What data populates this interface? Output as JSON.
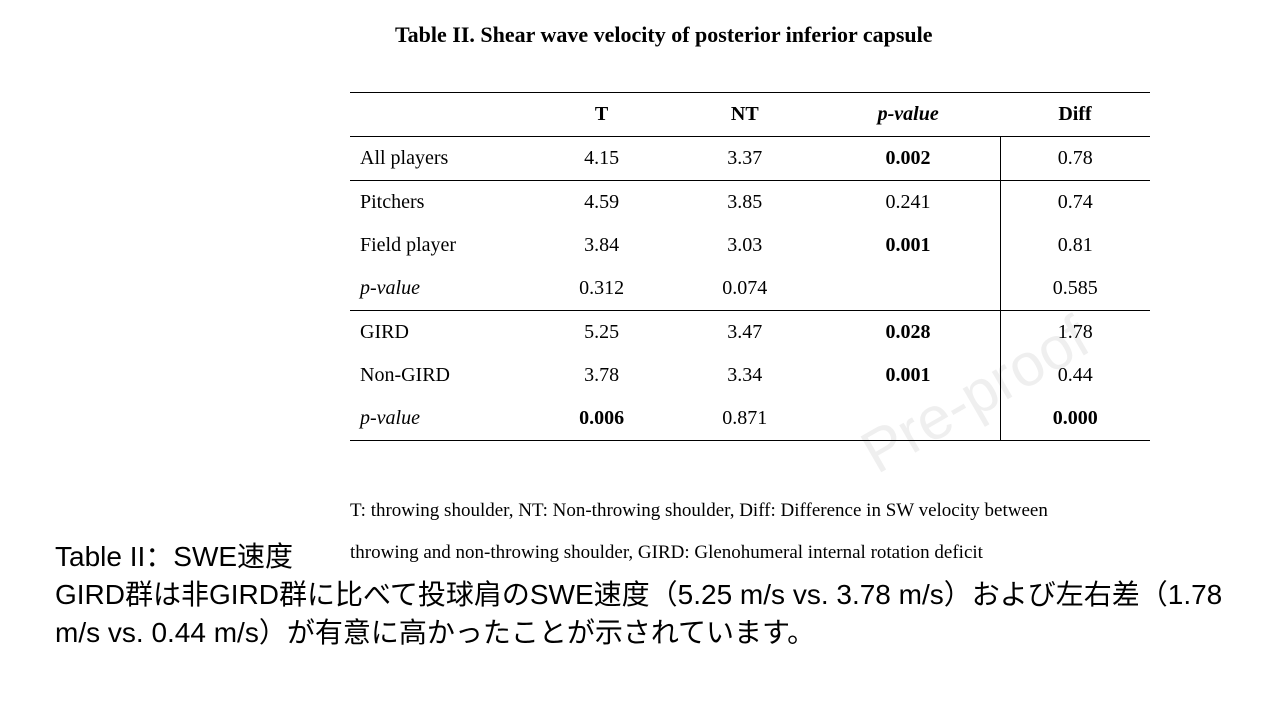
{
  "title": "Table II. Shear wave velocity of posterior inferior capsule",
  "table": {
    "columns": [
      "",
      "T",
      "NT",
      "p-value",
      "Diff"
    ],
    "rows": [
      {
        "label": "All players",
        "t": "4.15",
        "nt": "3.37",
        "p": "0.002",
        "p_bold": true,
        "diff": "0.78",
        "italic": false,
        "section_end": true,
        "t_bold": false,
        "diff_bold": false
      },
      {
        "label": "Pitchers",
        "t": "4.59",
        "nt": "3.85",
        "p": "0.241",
        "p_bold": false,
        "diff": "0.74",
        "italic": false,
        "section_end": false,
        "t_bold": false,
        "diff_bold": false
      },
      {
        "label": "Field player",
        "t": "3.84",
        "nt": "3.03",
        "p": "0.001",
        "p_bold": true,
        "diff": "0.81",
        "italic": false,
        "section_end": false,
        "t_bold": false,
        "diff_bold": false
      },
      {
        "label": "p-value",
        "t": "0.312",
        "nt": "0.074",
        "p": "",
        "p_bold": false,
        "diff": "0.585",
        "italic": true,
        "section_end": true,
        "t_bold": false,
        "diff_bold": false
      },
      {
        "label": "GIRD",
        "t": "5.25",
        "nt": "3.47",
        "p": "0.028",
        "p_bold": true,
        "diff": "1.78",
        "italic": false,
        "section_end": false,
        "t_bold": false,
        "diff_bold": false
      },
      {
        "label": "Non-GIRD",
        "t": "3.78",
        "nt": "3.34",
        "p": "0.001",
        "p_bold": true,
        "diff": "0.44",
        "italic": false,
        "section_end": false,
        "t_bold": false,
        "diff_bold": false
      },
      {
        "label": "p-value",
        "t": "0.006",
        "nt": "0.871",
        "p": "",
        "p_bold": false,
        "diff": "0.000",
        "italic": true,
        "section_end": false,
        "t_bold": true,
        "diff_bold": true
      }
    ]
  },
  "footnote_line1": "T: throwing shoulder, NT: Non-throwing shoulder, Diff: Difference in SW velocity between",
  "footnote_line2": "throwing and non-throwing shoulder, GIRD: Glenohumeral internal rotation deficit",
  "caption_head": "Table II：SWE速度",
  "caption_body": "GIRD群は非GIRD群に比べて投球肩のSWE速度（5.25 m/s vs. 3.78 m/s）および左右差（1.78 m/s vs. 0.44 m/s）が有意に高かったことが示されています。",
  "watermark": "Pre-proof"
}
